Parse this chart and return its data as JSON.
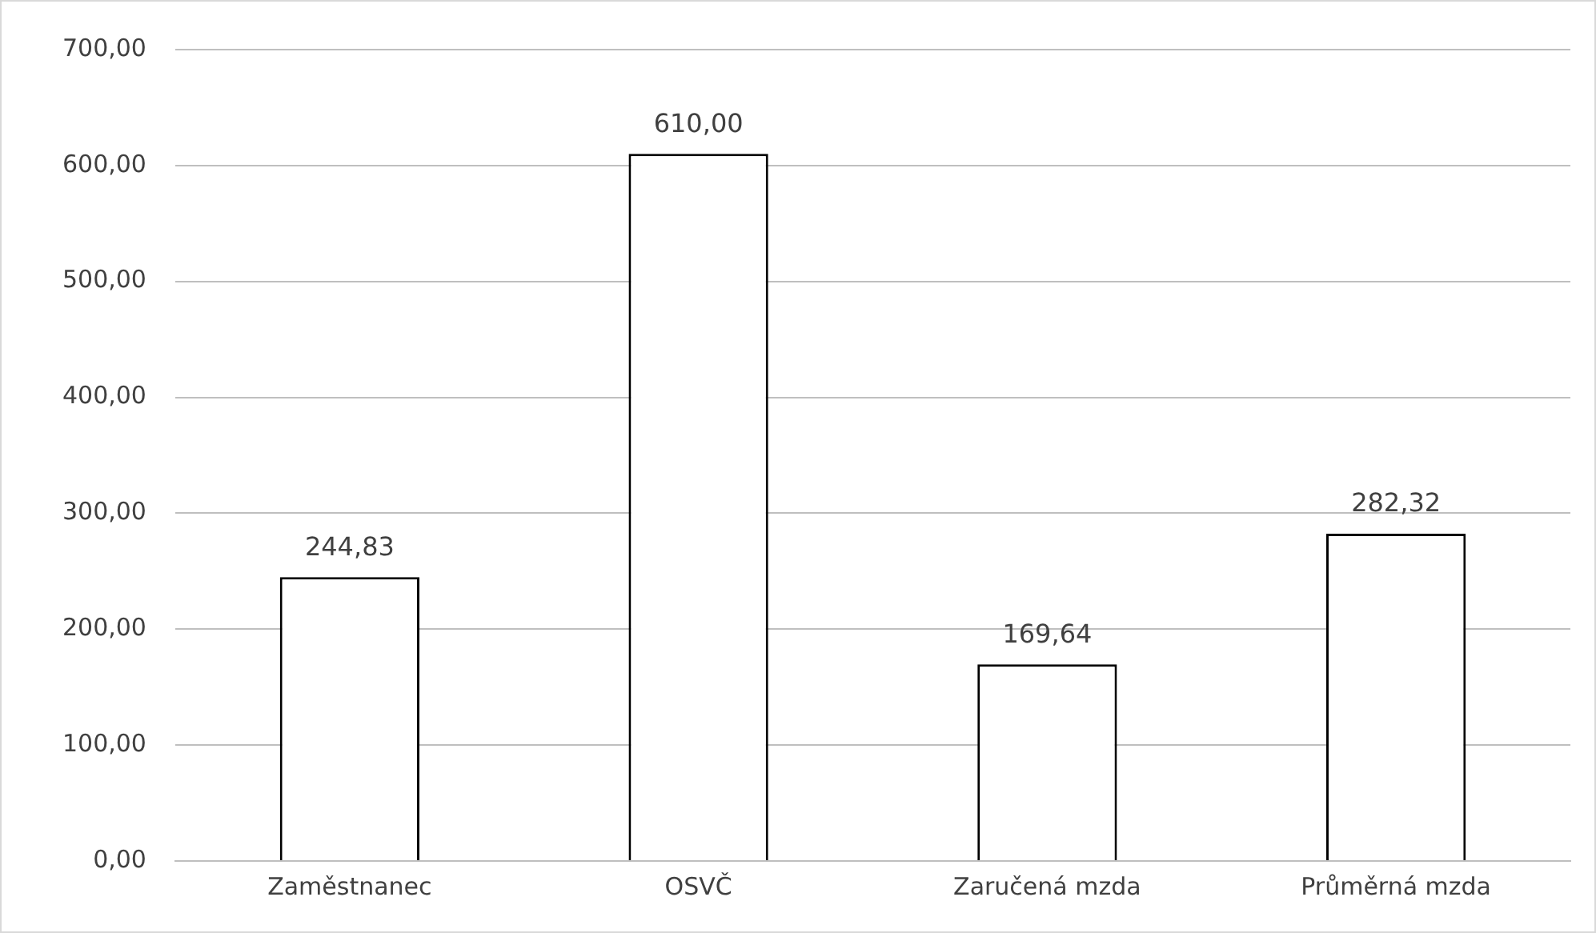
{
  "chart_data": {
    "type": "bar",
    "categories": [
      "Zaměstnanec",
      "OSVČ",
      "Zaručená mzda",
      "Průměrná mzda"
    ],
    "values": [
      244.83,
      610.0,
      169.64,
      282.32
    ],
    "value_labels": [
      "244,83",
      "610,00",
      "169,64",
      "282,32"
    ],
    "color": "#ffffff",
    "ylim": [
      0,
      700
    ],
    "yticks": [
      {
        "value": 0,
        "label": "0,00"
      },
      {
        "value": 100,
        "label": "100,00"
      },
      {
        "value": 200,
        "label": "200,00"
      },
      {
        "value": 300,
        "label": "300,00"
      },
      {
        "value": 400,
        "label": "400,00"
      },
      {
        "value": 500,
        "label": "500,00"
      },
      {
        "value": 600,
        "label": "600,00"
      },
      {
        "value": 700,
        "label": "700,00"
      }
    ],
    "grid": "y",
    "legend": false
  }
}
